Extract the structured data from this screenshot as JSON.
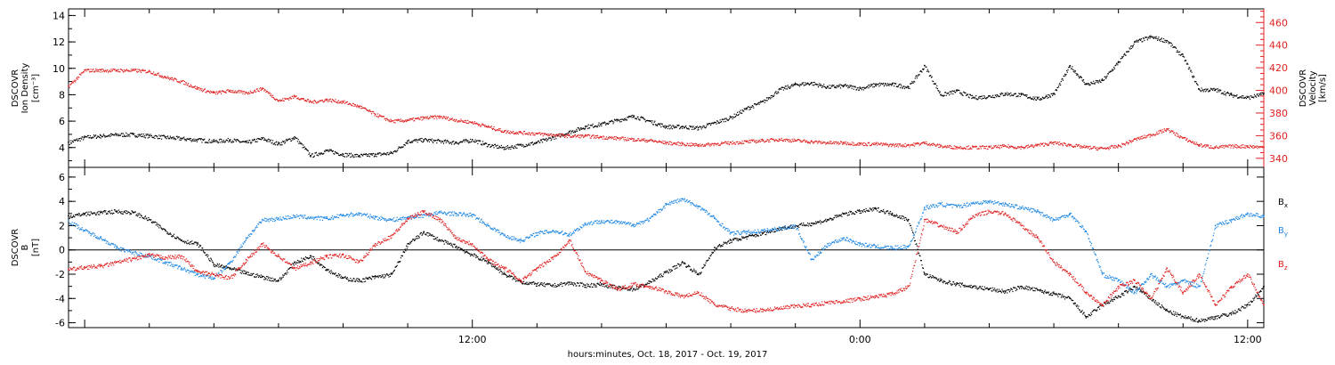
{
  "chart_data": [
    {
      "type": "scatter",
      "panel": "top",
      "left_axis": {
        "label_lines": [
          "DSCOVR",
          "Ion Density"
        ],
        "unit": "[cm⁻³]",
        "ylim": [
          2.5,
          14.5
        ],
        "ticks": [
          4,
          6,
          8,
          10,
          12,
          14
        ],
        "color": "#000000"
      },
      "right_axis": {
        "label_lines": [
          "DSCOVR",
          "Velocity",
          "[km/s]"
        ],
        "ylim": [
          332,
          472
        ],
        "ticks": [
          340,
          360,
          380,
          400,
          420,
          440,
          460
        ],
        "color": "#e02020"
      },
      "series": [
        {
          "axis": "left",
          "color": "#000000",
          "x": [
            -0.5,
            0,
            0.5,
            1,
            1.5,
            2,
            2.5,
            3,
            3.5,
            4,
            4.5,
            5,
            5.5,
            6,
            6.5,
            7,
            7.5,
            8,
            8.5,
            9,
            9.5,
            10,
            10.5,
            11,
            11.5,
            12,
            12.5,
            13,
            13.5,
            14,
            14.5,
            15,
            15.5,
            16,
            16.5,
            17,
            17.5,
            18,
            18.5,
            19,
            19.5,
            20,
            20.5,
            21,
            21.5,
            22,
            22.5,
            23,
            23.5,
            24,
            24.5,
            25,
            25.5,
            26,
            26.5,
            27,
            27.5,
            28,
            28.5,
            29,
            29.5,
            30,
            30.5,
            31,
            31.5,
            32,
            32.5,
            33,
            33.5,
            34,
            34.5,
            35,
            35.5,
            36,
            36.5
          ],
          "y": [
            4.4,
            4.8,
            4.9,
            5.0,
            5.0,
            4.9,
            4.8,
            4.7,
            4.6,
            4.5,
            4.6,
            4.4,
            4.7,
            4.3,
            4.8,
            3.4,
            3.8,
            3.5,
            3.4,
            3.5,
            3.6,
            4.5,
            4.6,
            4.5,
            4.4,
            4.6,
            4.2,
            4.0,
            4.2,
            4.4,
            4.8,
            5.2,
            5.6,
            5.8,
            6.1,
            6.4,
            6.0,
            5.6,
            5.6,
            5.5,
            5.9,
            6.3,
            7.0,
            7.5,
            8.4,
            8.8,
            8.9,
            8.6,
            8.7,
            8.5,
            8.8,
            8.8,
            8.6,
            10.2,
            8.0,
            8.3,
            7.8,
            7.9,
            8.1,
            8.0,
            7.7,
            8.1,
            10.2,
            8.8,
            9.1,
            10.5,
            12.0,
            12.4,
            12.1,
            10.9,
            8.4,
            8.4,
            8.0,
            7.8,
            8.1
          ]
        },
        {
          "axis": "right",
          "color": "#e02020",
          "x": [
            -0.5,
            0,
            0.5,
            1,
            1.5,
            2,
            2.5,
            3,
            3.5,
            4,
            4.5,
            5,
            5.5,
            6,
            6.5,
            7,
            7.5,
            8,
            8.5,
            9,
            9.5,
            10,
            10.5,
            11,
            11.5,
            12,
            12.5,
            13,
            13.5,
            14,
            14.5,
            15,
            15.5,
            16,
            16.5,
            17,
            17.5,
            18,
            18.5,
            19,
            19.5,
            20,
            20.5,
            21,
            21.5,
            22,
            22.5,
            23,
            23.5,
            24,
            24.5,
            25,
            25.5,
            26,
            26.5,
            27,
            27.5,
            28,
            28.5,
            29,
            29.5,
            30,
            30.5,
            31,
            31.5,
            32,
            32.5,
            33,
            33.5,
            34,
            34.5,
            35,
            35.5,
            36,
            36.5
          ],
          "y": [
            404,
            418,
            418,
            418,
            418,
            417,
            412,
            408,
            402,
            398,
            400,
            398,
            402,
            391,
            395,
            390,
            392,
            390,
            386,
            379,
            373,
            374,
            376,
            377,
            374,
            372,
            368,
            364,
            363,
            362,
            361,
            360,
            360,
            359,
            358,
            357,
            356,
            354,
            353,
            352,
            353,
            354,
            355,
            356,
            357,
            356,
            355,
            354,
            354,
            353,
            353,
            352,
            352,
            354,
            351,
            350,
            350,
            350,
            351,
            350,
            352,
            354,
            352,
            350,
            349,
            351,
            357,
            361,
            366,
            358,
            352,
            350,
            351,
            351,
            350
          ]
        }
      ],
      "xlim": [
        -0.5,
        36.5
      ]
    },
    {
      "type": "scatter",
      "panel": "bottom",
      "left_axis": {
        "label_lines": [
          "DSCOVR",
          "B"
        ],
        "unit": "[nT]",
        "ylim": [
          -6.4,
          6.8
        ],
        "ticks": [
          -6,
          -4,
          -2,
          0,
          2,
          4,
          6
        ],
        "color": "#000000"
      },
      "zero_line": true,
      "legend": [
        {
          "label": "Bx",
          "base": "B",
          "sub": "x",
          "color": "#000000"
        },
        {
          "label": "By",
          "base": "B",
          "sub": "y",
          "color": "#1e88e5"
        },
        {
          "label": "Bz",
          "base": "B",
          "sub": "z",
          "color": "#e02020"
        }
      ],
      "series": [
        {
          "name": "Bx",
          "color": "#000000",
          "x": [
            -0.5,
            0,
            0.5,
            1,
            1.5,
            2,
            2.5,
            3,
            3.5,
            4,
            4.5,
            5,
            5.5,
            6,
            6.5,
            7,
            7.5,
            8,
            8.5,
            9,
            9.5,
            10,
            10.5,
            11,
            11.5,
            12,
            12.5,
            13,
            13.5,
            14,
            14.5,
            15,
            15.5,
            16,
            16.5,
            17,
            17.5,
            18,
            18.5,
            19,
            19.5,
            20,
            20.5,
            21,
            21.5,
            22,
            22.5,
            23,
            23.5,
            24,
            24.5,
            25,
            25.5,
            26,
            26.5,
            27,
            27.5,
            28,
            28.5,
            29,
            29.5,
            30,
            30.5,
            31,
            31.5,
            32,
            32.5,
            33,
            33.5,
            34,
            34.5,
            35,
            35.5,
            36,
            36.5
          ],
          "y": [
            2.8,
            3.0,
            3.1,
            3.2,
            3.1,
            2.5,
            1.6,
            0.8,
            0.5,
            -1.2,
            -1.5,
            -1.9,
            -2.2,
            -2.5,
            -1.0,
            -0.5,
            -1.6,
            -2.3,
            -2.5,
            -2.2,
            -2.0,
            0.5,
            1.5,
            0.8,
            0.3,
            -0.4,
            -1.0,
            -2.0,
            -2.6,
            -2.8,
            -2.9,
            -2.7,
            -2.9,
            -2.8,
            -3.1,
            -3.2,
            -2.6,
            -1.8,
            -1.0,
            -2.0,
            0.2,
            0.8,
            1.1,
            1.4,
            1.8,
            2.0,
            2.2,
            2.5,
            3.0,
            3.2,
            3.4,
            3.0,
            2.5,
            -2.0,
            -2.5,
            -2.8,
            -3.0,
            -3.2,
            -3.4,
            -3.0,
            -3.3,
            -3.6,
            -4.0,
            -5.5,
            -4.5,
            -3.8,
            -3.0,
            -4.0,
            -5.0,
            -5.5,
            -5.8,
            -5.5,
            -5.2,
            -4.5,
            -3.0
          ]
        },
        {
          "name": "By",
          "color": "#1e88e5",
          "x": [
            -0.5,
            0,
            0.5,
            1,
            1.5,
            2,
            2.5,
            3,
            3.5,
            4,
            4.5,
            5,
            5.5,
            6,
            6.5,
            7,
            7.5,
            8,
            8.5,
            9,
            9.5,
            10,
            10.5,
            11,
            11.5,
            12,
            12.5,
            13,
            13.5,
            14,
            14.5,
            15,
            15.5,
            16,
            16.5,
            17,
            17.5,
            18,
            18.5,
            19,
            19.5,
            20,
            20.5,
            21,
            21.5,
            22,
            22.5,
            23,
            23.5,
            24,
            24.5,
            25,
            25.5,
            26,
            26.5,
            27,
            27.5,
            28,
            28.5,
            29,
            29.5,
            30,
            30.5,
            31,
            31.5,
            32,
            32.5,
            33,
            33.5,
            34,
            34.5,
            35,
            35.5,
            36,
            36.5
          ],
          "y": [
            2.4,
            1.6,
            1.0,
            0.2,
            -0.2,
            -0.5,
            -1.0,
            -1.5,
            -2.0,
            -2.3,
            -1.0,
            1.0,
            2.5,
            2.6,
            2.8,
            2.7,
            2.6,
            2.9,
            3.0,
            2.7,
            2.5,
            2.7,
            2.9,
            3.1,
            3.0,
            2.9,
            2.0,
            1.2,
            0.8,
            1.4,
            1.6,
            1.3,
            2.2,
            2.4,
            2.3,
            2.1,
            2.6,
            3.8,
            4.2,
            3.6,
            2.6,
            1.4,
            1.5,
            1.6,
            1.8,
            2.0,
            -0.8,
            0.5,
            1.0,
            0.5,
            0.3,
            0.2,
            0.3,
            3.5,
            3.8,
            3.6,
            3.9,
            4.0,
            3.8,
            3.5,
            3.2,
            2.5,
            3.0,
            1.5,
            -2.0,
            -2.5,
            -3.5,
            -2.0,
            -3.0,
            -2.5,
            -3.0,
            2.0,
            2.5,
            3.0,
            2.8
          ]
        },
        {
          "name": "Bz",
          "color": "#e02020",
          "x": [
            -0.5,
            0,
            0.5,
            1,
            1.5,
            2,
            2.5,
            3,
            3.5,
            4,
            4.5,
            5,
            5.5,
            6,
            6.5,
            7,
            7.5,
            8,
            8.5,
            9,
            9.5,
            10,
            10.5,
            11,
            11.5,
            12,
            12.5,
            13,
            13.5,
            14,
            14.5,
            15,
            15.5,
            16,
            16.5,
            17,
            17.5,
            18,
            18.5,
            19,
            19.5,
            20,
            20.5,
            21,
            21.5,
            22,
            22.5,
            23,
            23.5,
            24,
            24.5,
            25,
            25.5,
            26,
            26.5,
            27,
            27.5,
            28,
            28.5,
            29,
            29.5,
            30,
            30.5,
            31,
            31.5,
            32,
            32.5,
            33,
            33.5,
            34,
            34.5,
            35,
            35.5,
            36,
            36.5
          ],
          "y": [
            -1.6,
            -1.4,
            -1.3,
            -1.0,
            -0.7,
            -0.4,
            -0.6,
            -0.5,
            -1.8,
            -2.0,
            -2.3,
            -0.8,
            0.5,
            -0.5,
            -1.5,
            -1.0,
            -0.5,
            -0.4,
            -1.0,
            0.5,
            1.2,
            2.6,
            3.2,
            2.5,
            1.0,
            0.5,
            -0.8,
            -1.5,
            -2.5,
            -1.5,
            -0.6,
            0.8,
            -1.8,
            -2.5,
            -3.2,
            -2.8,
            -3.0,
            -3.4,
            -3.8,
            -3.5,
            -4.5,
            -4.8,
            -5.0,
            -4.9,
            -4.8,
            -4.6,
            -4.5,
            -4.3,
            -4.2,
            -4.0,
            -3.8,
            -3.6,
            -3.0,
            2.5,
            2.0,
            1.5,
            2.8,
            3.2,
            3.0,
            2.0,
            1.0,
            -1.0,
            -2.0,
            -3.5,
            -4.5,
            -3.0,
            -2.5,
            -4.0,
            -1.5,
            -3.5,
            -2.0,
            -4.5,
            -3.0,
            -2.0,
            -4.5
          ]
        }
      ],
      "xlim": [
        -0.5,
        36.5
      ]
    }
  ],
  "x_axis": {
    "tick_labels": [
      {
        "value": 12,
        "label": "12:00"
      },
      {
        "value": 24,
        "label": "0:00"
      },
      {
        "value": 36,
        "label": "12:00"
      }
    ],
    "minor_tick_hours": 2,
    "xlim": [
      -0.5,
      36.5
    ],
    "label": "hours:minutes, Oct. 18, 2017 - Oct. 19, 2017"
  }
}
